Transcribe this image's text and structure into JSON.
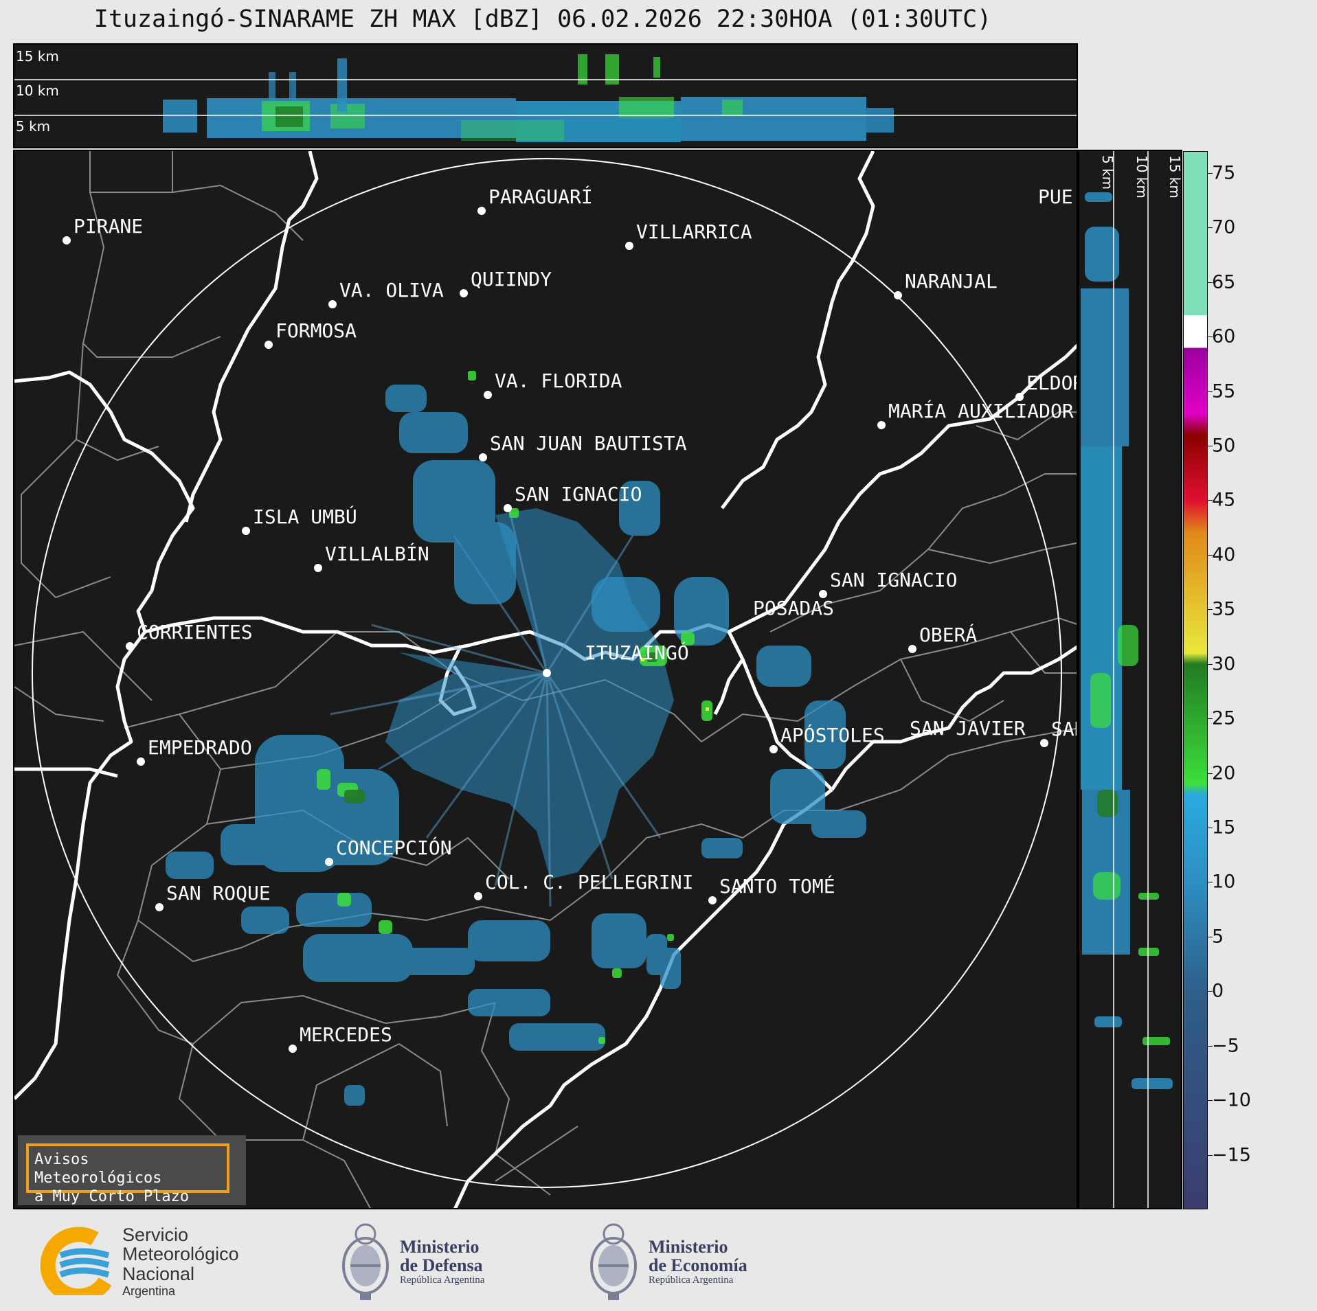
{
  "header": {
    "title": "Ituzaingó-SINARAME ZH MAX [dBZ] 06.02.2026 22:30HOA (01:30UTC)"
  },
  "top_panel": {
    "height_labels": [
      "15 km",
      "10 km",
      "5 km"
    ]
  },
  "side_panel": {
    "height_labels": [
      "5 km",
      "10 km",
      "15 km"
    ]
  },
  "colorbar": {
    "unit": "dBZ",
    "ticks": [
      "75",
      "70",
      "65",
      "60",
      "55",
      "50",
      "45",
      "40",
      "35",
      "30",
      "25",
      "20",
      "15",
      "10",
      "5",
      "0",
      "−5",
      "−10",
      "−15"
    ],
    "tick_values": [
      75,
      70,
      65,
      60,
      55,
      50,
      45,
      40,
      35,
      30,
      25,
      20,
      15,
      10,
      5,
      0,
      -5,
      -10,
      -15
    ],
    "range": [
      -20,
      77
    ],
    "colors": {
      "very_low": "#3b3d6e",
      "low": "#2e5f8a",
      "mid": "#2d8fc2",
      "light_blue": "#2aaadf",
      "green": "#3cdf3c",
      "dark_green": "#227a22",
      "yellow": "#e8e83c",
      "orange": "#e08a1a",
      "red": "#e01030",
      "dark_red": "#8a0000",
      "magenta": "#e000c8",
      "purple": "#9a00a0",
      "white": "#ffffff",
      "aqua": "#7fe0b8"
    }
  },
  "map": {
    "radar_site": "ITUZAINGÓ",
    "cities": [
      {
        "name": "PARAGUARÍ"
      },
      {
        "name": "PIRANE"
      },
      {
        "name": "VILLARRICA"
      },
      {
        "name": "QUIINDY"
      },
      {
        "name": "VA. OLIVA"
      },
      {
        "name": "NARANJAL"
      },
      {
        "name": "FORMOSA"
      },
      {
        "name": "VA. FLORIDA"
      },
      {
        "name": "ELDOR"
      },
      {
        "name": "MARÍA AUXILIADOR"
      },
      {
        "name": "SAN JUAN BAUTISTA"
      },
      {
        "name": "SAN IGNACIO"
      },
      {
        "name": "ISLA UMBÚ"
      },
      {
        "name": "VILLALBÍN"
      },
      {
        "name": "SAN IGNACIO"
      },
      {
        "name": "POSADAS"
      },
      {
        "name": "CORRIENTES"
      },
      {
        "name": "ITUZAINGÓ"
      },
      {
        "name": "OBERÁ"
      },
      {
        "name": "APÓSTOLES"
      },
      {
        "name": "SAN JAVIER"
      },
      {
        "name": "SAN"
      },
      {
        "name": "EMPEDRADO"
      },
      {
        "name": "CONCEPCIÓN"
      },
      {
        "name": "COL. C. PELLEGRINI"
      },
      {
        "name": "SANTO TOMÉ"
      },
      {
        "name": "SAN ROQUE"
      },
      {
        "name": "MERCEDES"
      },
      {
        "name": "PUE"
      }
    ]
  },
  "notice": {
    "line1": "Avisos Meteorológicos",
    "line2": "a Muy Corto Plazo"
  },
  "footer": {
    "smn": {
      "line1": "Servicio",
      "line2": "Meteorológico",
      "line3": "Nacional",
      "line4": "Argentina"
    },
    "defensa": {
      "line1": "Ministerio",
      "line2": "de Defensa",
      "line3": "República Argentina"
    },
    "economia": {
      "line1": "Ministerio",
      "line2": "de Economía",
      "line3": "República Argentina"
    }
  }
}
